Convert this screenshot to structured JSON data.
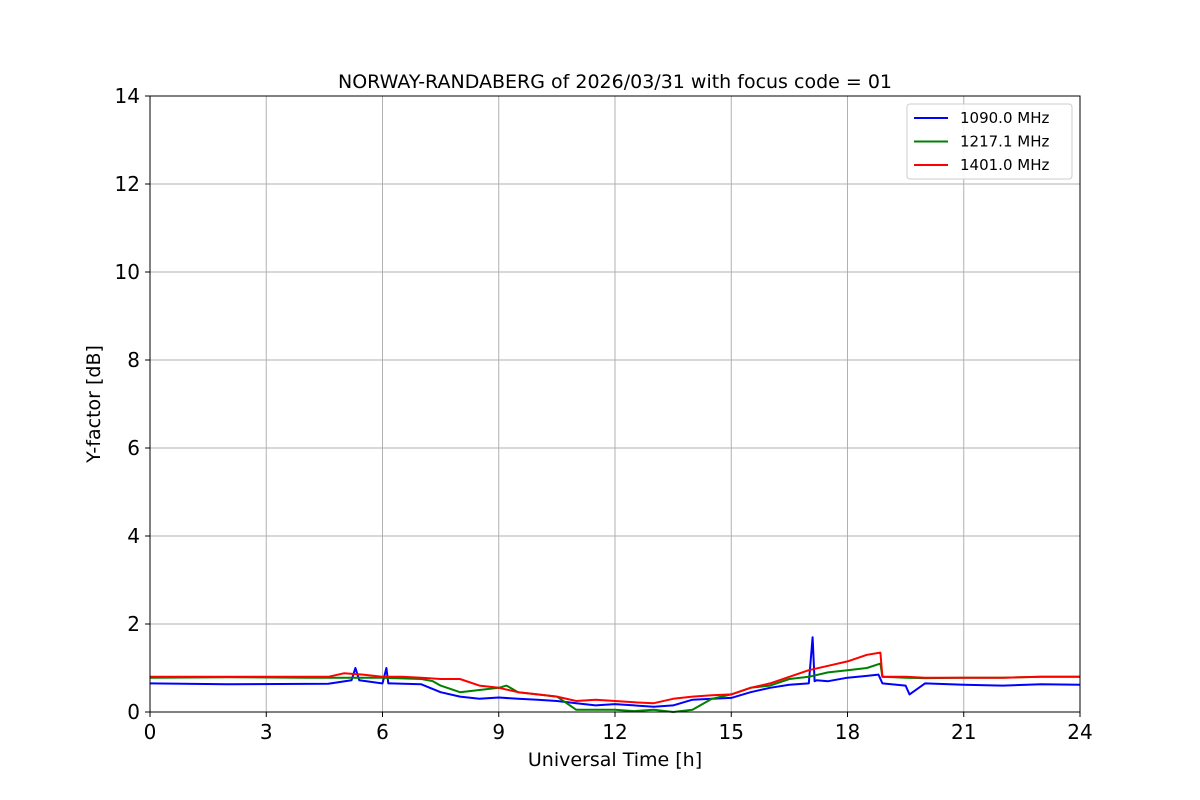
{
  "chart_data": {
    "type": "line",
    "title": "NORWAY-RANDABERG of 2026/03/31 with focus code = 01",
    "xlabel": "Universal Time [h]",
    "ylabel": "Y-factor [dB]",
    "xlim": [
      0,
      24
    ],
    "ylim": [
      0,
      14
    ],
    "xticks": [
      0,
      3,
      6,
      9,
      12,
      15,
      18,
      21,
      24
    ],
    "yticks": [
      0,
      2,
      4,
      6,
      8,
      10,
      12,
      14
    ],
    "grid": true,
    "legend_position": "top-right",
    "series": [
      {
        "name": "1090.0 MHz",
        "color": "#0000ff",
        "x": [
          0,
          2,
          4.6,
          5.2,
          5.3,
          5.4,
          6,
          6.1,
          6.15,
          6.2,
          7,
          7.5,
          8,
          8.5,
          9,
          9.5,
          10,
          10.5,
          11,
          11.5,
          12,
          12.5,
          13,
          13.5,
          14,
          14.5,
          15,
          15.5,
          16,
          16.5,
          17,
          17.1,
          17.15,
          17.2,
          17.5,
          18,
          18.5,
          18.8,
          18.9,
          19.5,
          19.6,
          20,
          21,
          22,
          23,
          24
        ],
        "y": [
          0.65,
          0.63,
          0.64,
          0.72,
          1.0,
          0.72,
          0.65,
          1.0,
          0.65,
          0.65,
          0.63,
          0.45,
          0.35,
          0.3,
          0.33,
          0.3,
          0.28,
          0.25,
          0.2,
          0.15,
          0.18,
          0.15,
          0.12,
          0.15,
          0.28,
          0.3,
          0.32,
          0.45,
          0.55,
          0.62,
          0.65,
          1.7,
          0.7,
          0.72,
          0.7,
          0.78,
          0.82,
          0.85,
          0.65,
          0.6,
          0.4,
          0.65,
          0.62,
          0.6,
          0.63,
          0.62
        ]
      },
      {
        "name": "1217.1 MHz",
        "color": "#008000",
        "x": [
          0,
          2,
          4,
          6,
          7,
          7.3,
          7.5,
          8,
          8.5,
          9,
          9.2,
          9.5,
          10,
          10.5,
          11,
          11.5,
          12,
          12.5,
          13,
          13.5,
          14,
          14.5,
          15,
          15.5,
          16,
          16.5,
          17,
          17.5,
          18,
          18.5,
          18.85,
          18.9,
          19.5,
          20,
          21,
          22,
          23,
          24
        ],
        "y": [
          0.78,
          0.79,
          0.78,
          0.78,
          0.75,
          0.7,
          0.6,
          0.45,
          0.5,
          0.55,
          0.6,
          0.45,
          0.4,
          0.35,
          0.05,
          0.05,
          0.05,
          0.02,
          0.05,
          0.0,
          0.05,
          0.3,
          0.4,
          0.55,
          0.6,
          0.75,
          0.8,
          0.9,
          0.95,
          1.0,
          1.1,
          0.8,
          0.78,
          0.77,
          0.78,
          0.78,
          0.8,
          0.8
        ]
      },
      {
        "name": "1401.0 MHz",
        "color": "#ff0000",
        "x": [
          0,
          2,
          4,
          4.6,
          5,
          5.5,
          6,
          6.5,
          7,
          7.5,
          8,
          8.5,
          9,
          9.5,
          10,
          10.5,
          11,
          11.5,
          12,
          12.5,
          13,
          13.5,
          14,
          14.5,
          15,
          15.5,
          16,
          16.5,
          17,
          17.5,
          18,
          18.5,
          18.85,
          18.9,
          19.5,
          20,
          21,
          22,
          23,
          24
        ],
        "y": [
          0.8,
          0.8,
          0.8,
          0.8,
          0.88,
          0.85,
          0.8,
          0.8,
          0.78,
          0.75,
          0.75,
          0.6,
          0.55,
          0.45,
          0.4,
          0.35,
          0.25,
          0.28,
          0.25,
          0.22,
          0.2,
          0.3,
          0.35,
          0.38,
          0.4,
          0.55,
          0.65,
          0.8,
          0.95,
          1.05,
          1.15,
          1.3,
          1.35,
          0.8,
          0.8,
          0.78,
          0.78,
          0.78,
          0.8,
          0.8
        ]
      }
    ]
  }
}
